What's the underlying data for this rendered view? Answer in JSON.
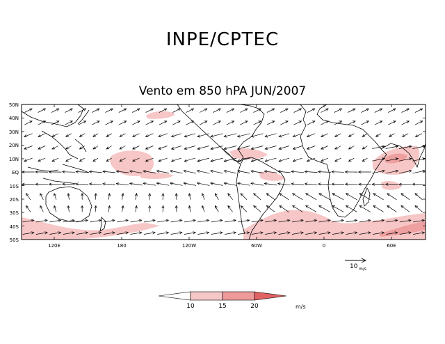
{
  "header": {
    "title": "INPE/CPTEC",
    "subtitle": "Vento em 850 hPA JUN/2007"
  },
  "map": {
    "lat_labels": [
      "50N",
      "40N",
      "30N",
      "20N",
      "10N",
      "EQ",
      "10S",
      "20S",
      "30S",
      "40S",
      "50S"
    ],
    "lon_labels": [
      "120E",
      "180",
      "120W",
      "60W",
      "0",
      "60E"
    ],
    "reference_vector": {
      "value": "10",
      "unit": "m/s"
    }
  },
  "colorbar": {
    "thresholds": [
      "10",
      "15",
      "20"
    ],
    "unit": "m/s",
    "colors": [
      "#ffffff",
      "#f6c7c7",
      "#ee9a9a",
      "#e06363"
    ]
  },
  "colors": {
    "shade_light": "#f7c6c6",
    "shade_mid": "#ee9f9f",
    "shade_dark": "#e06a6a"
  }
}
